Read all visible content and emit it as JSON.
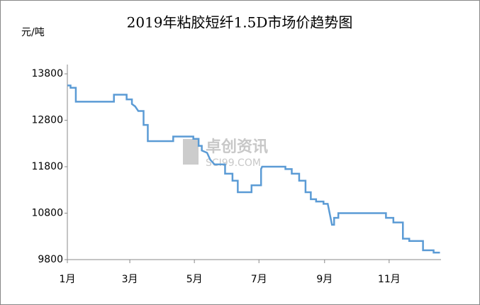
{
  "chart_data": {
    "type": "line",
    "title": "2019年粘胶短纤1.5D市场价趋势图",
    "y_label": "元/吨",
    "watermark": "卓创资讯",
    "watermark_sub": "SCI99.COM",
    "x": [
      0,
      3,
      3,
      8,
      8,
      44,
      44,
      56,
      56,
      61,
      61,
      64,
      67,
      72,
      72,
      76,
      76,
      100,
      100,
      119,
      119,
      124,
      124,
      127,
      127,
      132,
      135,
      139,
      149,
      149,
      156,
      156,
      161,
      161,
      174,
      174,
      183,
      183,
      184,
      206,
      206,
      212,
      212,
      219,
      219,
      225,
      225,
      230,
      230,
      235,
      235,
      242,
      242,
      246,
      250,
      252,
      252,
      256,
      256,
      301,
      301,
      308,
      308,
      317,
      317,
      323,
      323,
      336,
      336,
      346,
      346,
      352
    ],
    "series": [
      {
        "color": "#5b9bd5",
        "values": [
          13550,
          13550,
          13500,
          13500,
          13200,
          13200,
          13350,
          13350,
          13250,
          13250,
          13150,
          13100,
          13000,
          13000,
          12700,
          12700,
          12350,
          12350,
          12450,
          12450,
          12400,
          12400,
          12250,
          12250,
          12150,
          12100,
          11950,
          11850,
          11850,
          11650,
          11650,
          11500,
          11500,
          11250,
          11250,
          11400,
          11400,
          11750,
          11800,
          11800,
          11750,
          11750,
          11650,
          11650,
          11500,
          11500,
          11250,
          11250,
          11100,
          11100,
          11050,
          11050,
          11000,
          11000,
          10550,
          10550,
          10700,
          10700,
          10800,
          10800,
          10700,
          10700,
          10600,
          10600,
          10250,
          10250,
          10200,
          10200,
          10000,
          10000,
          9950,
          9950
        ]
      }
    ],
    "xlim": [
      0,
      353
    ],
    "xticks": [
      {
        "value": 0,
        "label": "1月"
      },
      {
        "value": 59,
        "label": "3月"
      },
      {
        "value": 120,
        "label": "5月"
      },
      {
        "value": 181,
        "label": "7月"
      },
      {
        "value": 243,
        "label": "9月"
      },
      {
        "value": 304,
        "label": "11月"
      }
    ],
    "ylim": [
      9800,
      14000
    ],
    "yticks": [
      9800,
      10800,
      11800,
      12800,
      13800
    ],
    "grid": false
  }
}
